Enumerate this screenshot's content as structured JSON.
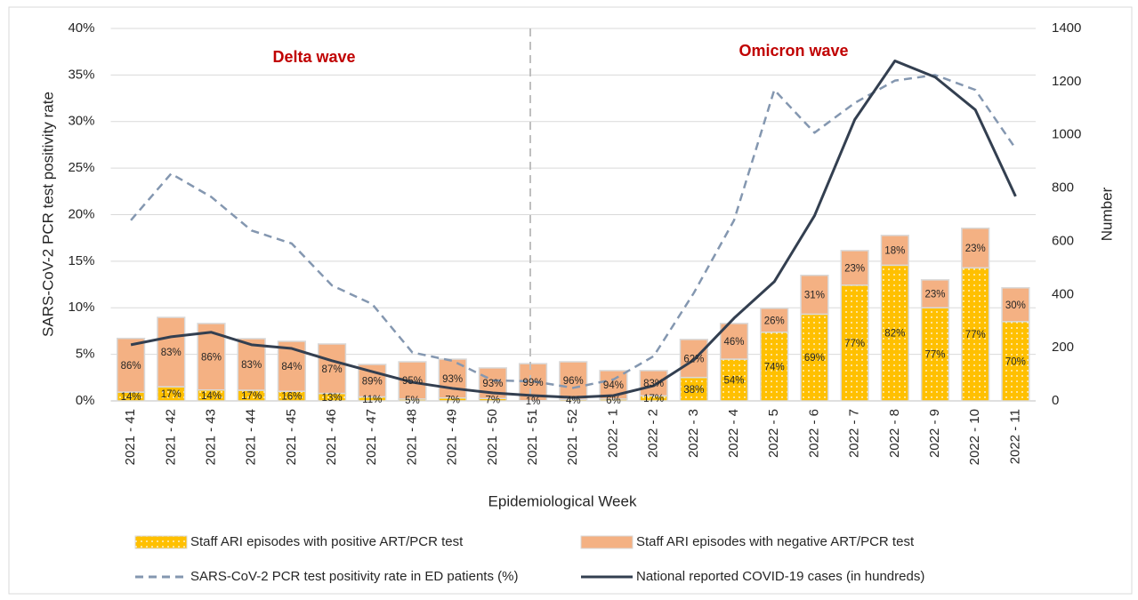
{
  "chart_data": {
    "type": "bar",
    "annotations": [
      "Delta wave",
      "Omicron wave"
    ],
    "xlabel": "Epidemiological Week",
    "ylabel": "SARS-CoV-2 PCR test positivity rate",
    "y2label": "Number",
    "categories": [
      "2021 - 41",
      "2021 - 42",
      "2021 - 43",
      "2021 - 44",
      "2021 - 45",
      "2021 - 46",
      "2021 - 47",
      "2021 - 48",
      "2021 - 49",
      "2021 - 50",
      "2021 - 51",
      "2021 - 52",
      "2022 - 1",
      "2022 - 2",
      "2022 - 3",
      "2022 - 4",
      "2022 - 5",
      "2022 - 6",
      "2022 - 7",
      "2022 - 8",
      "2022 - 9",
      "2022 - 10",
      "2022 - 11"
    ],
    "ylim": [
      0,
      40
    ],
    "yticks": [
      {
        "value": 0,
        "label": "0%"
      },
      {
        "value": 5,
        "label": "5%"
      },
      {
        "value": 10,
        "label": "10%"
      },
      {
        "value": 15,
        "label": "15%"
      },
      {
        "value": 20,
        "label": "20%"
      },
      {
        "value": 25,
        "label": "25%"
      },
      {
        "value": 30,
        "label": "30%"
      },
      {
        "value": 35,
        "label": "35%"
      },
      {
        "value": 40,
        "label": "40%"
      }
    ],
    "y2lim": [
      0,
      1400
    ],
    "y2ticks": [
      0,
      200,
      400,
      600,
      800,
      1000,
      1200,
      1400
    ],
    "grid": true,
    "series": [
      {
        "name": "Staff ARI episodes with positive ART/PCR test",
        "type": "bar",
        "axis": "y2",
        "color": "#ffc000",
        "pattern": "dots",
        "values": [
          33,
          53,
          41,
          40,
          36,
          28,
          15,
          7,
          11,
          9,
          1,
          6,
          7,
          19,
          88,
          157,
          258,
          326,
          435,
          510,
          350,
          500,
          298
        ],
        "share_labels": [
          "14%",
          "17%",
          "14%",
          "17%",
          "16%",
          "13%",
          "11%",
          "5%",
          "7%",
          "7%",
          "1%",
          "4%",
          "6%",
          "17%",
          "38%",
          "54%",
          "74%",
          "69%",
          "77%",
          "82%",
          "77%",
          "77%",
          "70%"
        ]
      },
      {
        "name": "Staff ARI episodes with negative ART/PCR test",
        "type": "bar",
        "axis": "y2",
        "color": "#f4b183",
        "values": [
          202,
          261,
          250,
          194,
          188,
          186,
          122,
          140,
          146,
          115,
          139,
          141,
          107,
          95,
          143,
          134,
          90,
          146,
          130,
          112,
          105,
          149,
          127
        ],
        "share_labels": [
          "86%",
          "83%",
          "86%",
          "83%",
          "84%",
          "87%",
          "89%",
          "95%",
          "93%",
          "93%",
          "99%",
          "96%",
          "94%",
          "83%",
          "62%",
          "46%",
          "26%",
          "31%",
          "23%",
          "18%",
          "23%",
          "23%",
          "30%"
        ]
      },
      {
        "name": "SARS-CoV-2 PCR test positivity rate in ED patients (%)",
        "type": "line",
        "axis": "y",
        "color": "#8497b0",
        "dashed": true,
        "values": [
          19.4,
          24.4,
          21.9,
          18.3,
          16.9,
          12.4,
          10.4,
          5.2,
          4.3,
          2.2,
          2.1,
          1.4,
          2.3,
          4.8,
          11.6,
          19.4,
          33.4,
          28.8,
          32.0,
          34.4,
          35.0,
          33.4,
          27.1
        ]
      },
      {
        "name": "National reported COVID-19 cases (in hundreds)",
        "type": "line",
        "axis": "y2",
        "color": "#333f50",
        "dashed": false,
        "values": [
          211,
          241,
          258,
          211,
          197,
          151,
          110,
          70,
          47,
          30,
          20,
          13,
          20,
          57,
          154,
          311,
          448,
          696,
          1057,
          1278,
          1217,
          1094,
          769
        ]
      }
    ]
  }
}
